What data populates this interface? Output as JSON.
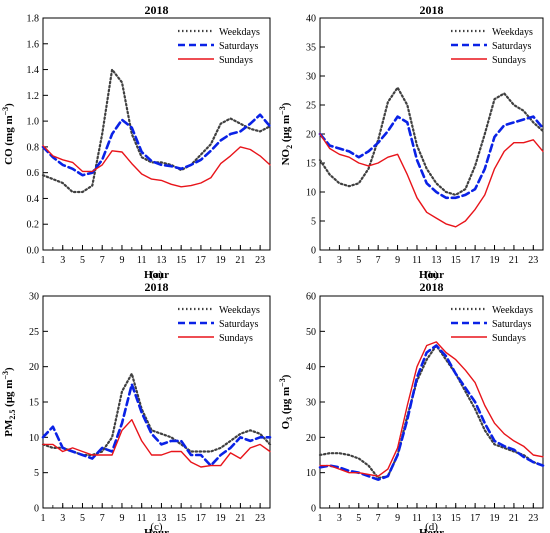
{
  "colors": {
    "weekdays": "#404040",
    "saturdays": "#0a22e6",
    "sundays": "#e8141a"
  },
  "chart_data": [
    {
      "id": "a",
      "type": "line",
      "title": "2018",
      "caption": "(a)",
      "xlabel": "Hour",
      "ylabel": {
        "pre": "CO (mg m",
        "sup": "−3",
        "post": ")"
      },
      "xlim": [
        1,
        24
      ],
      "ylim": [
        0,
        1.8
      ],
      "xticks": [
        1,
        3,
        5,
        7,
        9,
        11,
        13,
        15,
        17,
        19,
        21,
        23
      ],
      "yticks": [
        0,
        0.2,
        0.4,
        0.6,
        0.8,
        1.0,
        1.2,
        1.4,
        1.6,
        1.8
      ],
      "ytick_labels": [
        "0.0",
        "0.2",
        "0.4",
        "0.6",
        "0.8",
        "1.0",
        "1.2",
        "1.4",
        "1.6",
        "1.8"
      ],
      "x": [
        1,
        2,
        3,
        4,
        5,
        6,
        7,
        8,
        9,
        10,
        11,
        12,
        13,
        14,
        15,
        16,
        17,
        18,
        19,
        20,
        21,
        22,
        23,
        24
      ],
      "series": [
        {
          "name": "Weekdays",
          "values": [
            0.58,
            0.55,
            0.52,
            0.45,
            0.45,
            0.5,
            0.9,
            1.4,
            1.3,
            0.9,
            0.72,
            0.68,
            0.68,
            0.66,
            0.62,
            0.66,
            0.74,
            0.82,
            0.98,
            1.02,
            0.98,
            0.94,
            0.92,
            0.96
          ]
        },
        {
          "name": "Saturdays",
          "values": [
            0.8,
            0.72,
            0.66,
            0.63,
            0.58,
            0.6,
            0.7,
            0.9,
            1.01,
            0.95,
            0.76,
            0.69,
            0.66,
            0.65,
            0.63,
            0.66,
            0.7,
            0.77,
            0.85,
            0.9,
            0.92,
            0.98,
            1.05,
            0.96
          ]
        },
        {
          "name": "Sundays",
          "values": [
            0.81,
            0.73,
            0.7,
            0.68,
            0.61,
            0.61,
            0.66,
            0.77,
            0.76,
            0.67,
            0.59,
            0.55,
            0.54,
            0.51,
            0.49,
            0.5,
            0.52,
            0.56,
            0.67,
            0.73,
            0.8,
            0.78,
            0.73,
            0.66
          ]
        }
      ]
    },
    {
      "id": "b",
      "type": "line",
      "title": "2018",
      "caption": "(b)",
      "xlabel": "Hour",
      "ylabel": {
        "pre": "NO",
        "sub": "2",
        "mid": " (μg m",
        "sup": "−3",
        "post": ")"
      },
      "xlim": [
        1,
        24
      ],
      "ylim": [
        0,
        40
      ],
      "xticks": [
        1,
        3,
        5,
        7,
        9,
        11,
        13,
        15,
        17,
        19,
        21,
        23
      ],
      "yticks": [
        0,
        5,
        10,
        15,
        20,
        25,
        30,
        35,
        40
      ],
      "ytick_labels": [
        "0",
        "5",
        "10",
        "15",
        "20",
        "25",
        "30",
        "35",
        "40"
      ],
      "x": [
        1,
        2,
        3,
        4,
        5,
        6,
        7,
        8,
        9,
        10,
        11,
        12,
        13,
        14,
        15,
        16,
        17,
        18,
        19,
        20,
        21,
        22,
        23,
        24
      ],
      "series": [
        {
          "name": "Weekdays",
          "values": [
            15.5,
            13.0,
            11.5,
            11.0,
            11.5,
            14.0,
            19.0,
            25.5,
            28.0,
            25.0,
            18.0,
            14.0,
            11.5,
            10.0,
            9.5,
            10.5,
            14.5,
            20.0,
            26.0,
            27.0,
            25.0,
            24.0,
            22.0,
            20.5
          ]
        },
        {
          "name": "Saturdays",
          "values": [
            20.0,
            18.0,
            17.5,
            17.0,
            16.0,
            17.0,
            18.5,
            20.5,
            23.0,
            22.0,
            15.5,
            11.5,
            10.0,
            9.0,
            9.0,
            9.5,
            10.5,
            14.0,
            19.5,
            21.5,
            22.0,
            22.5,
            23.0,
            21.0
          ]
        },
        {
          "name": "Sundays",
          "values": [
            20.0,
            17.5,
            16.5,
            16.0,
            15.0,
            14.5,
            15.0,
            16.0,
            16.5,
            13.0,
            9.0,
            6.5,
            5.5,
            4.5,
            4.0,
            5.0,
            7.0,
            9.5,
            14.0,
            17.0,
            18.5,
            18.5,
            19.0,
            17.0
          ]
        }
      ]
    },
    {
      "id": "c",
      "type": "line",
      "title": "2018",
      "caption": "(c)",
      "xlabel": "Hour",
      "ylabel": {
        "pre": "PM",
        "sub": "2.5",
        "mid": " (μg m",
        "sup": "−3",
        "post": ")"
      },
      "xlim": [
        1,
        24
      ],
      "ylim": [
        0,
        30
      ],
      "xticks": [
        1,
        3,
        5,
        7,
        9,
        11,
        13,
        15,
        17,
        19,
        21,
        23
      ],
      "yticks": [
        0,
        5,
        10,
        15,
        20,
        25,
        30
      ],
      "ytick_labels": [
        "0",
        "5",
        "10",
        "15",
        "20",
        "25",
        "30"
      ],
      "x": [
        1,
        2,
        3,
        4,
        5,
        6,
        7,
        8,
        9,
        10,
        11,
        12,
        13,
        14,
        15,
        16,
        17,
        18,
        19,
        20,
        21,
        22,
        23,
        24
      ],
      "series": [
        {
          "name": "Weekdays",
          "values": [
            9.0,
            8.5,
            8.5,
            8.0,
            7.5,
            7.5,
            8.0,
            10.0,
            16.5,
            19.0,
            14.0,
            11.0,
            10.5,
            10.0,
            9.0,
            8.0,
            8.0,
            8.0,
            8.5,
            9.5,
            10.5,
            11.0,
            10.5,
            9.0
          ]
        },
        {
          "name": "Saturdays",
          "values": [
            10.0,
            11.5,
            8.5,
            8.0,
            7.5,
            7.0,
            8.5,
            8.0,
            12.0,
            17.5,
            13.5,
            10.5,
            9.0,
            9.5,
            9.5,
            7.5,
            7.5,
            6.0,
            7.5,
            8.5,
            10.0,
            9.5,
            10.0,
            10.0
          ]
        },
        {
          "name": "Sundays",
          "values": [
            9.0,
            9.0,
            8.0,
            8.5,
            8.0,
            7.5,
            7.5,
            7.5,
            11.0,
            12.5,
            9.5,
            7.5,
            7.5,
            8.0,
            8.0,
            6.5,
            5.8,
            6.0,
            6.0,
            7.8,
            7.0,
            8.5,
            9.0,
            8.0
          ]
        }
      ]
    },
    {
      "id": "d",
      "type": "line",
      "title": "2018",
      "caption": "(d)",
      "xlabel": "Hour",
      "ylabel": {
        "pre": "O",
        "sub": "3",
        "mid": " (μg m",
        "sup": "−3",
        "post": ")"
      },
      "xlim": [
        1,
        24
      ],
      "ylim": [
        0,
        60
      ],
      "xticks": [
        1,
        3,
        5,
        7,
        9,
        11,
        13,
        15,
        17,
        19,
        21,
        23
      ],
      "yticks": [
        0,
        10,
        20,
        30,
        40,
        50,
        60
      ],
      "ytick_labels": [
        "0",
        "10",
        "20",
        "30",
        "40",
        "50",
        "60"
      ],
      "x": [
        1,
        2,
        3,
        4,
        5,
        6,
        7,
        8,
        9,
        10,
        11,
        12,
        13,
        14,
        15,
        16,
        17,
        18,
        19,
        20,
        21,
        22,
        23,
        24
      ],
      "series": [
        {
          "name": "Weekdays",
          "values": [
            15.0,
            15.5,
            15.5,
            15.0,
            14.0,
            12.0,
            8.5,
            9.0,
            15.0,
            26.0,
            36.0,
            42.0,
            46.0,
            42.0,
            38.0,
            33.0,
            28.0,
            22.0,
            18.0,
            17.0,
            16.0,
            15.0,
            13.0,
            12.0
          ]
        },
        {
          "name": "Saturdays",
          "values": [
            11.5,
            12.0,
            11.5,
            10.5,
            10.0,
            9.0,
            8.0,
            9.0,
            15.0,
            25.0,
            37.0,
            44.0,
            46.0,
            43.0,
            38.0,
            34.0,
            30.0,
            24.0,
            19.0,
            17.5,
            16.5,
            14.5,
            13.0,
            12.0
          ]
        },
        {
          "name": "Sundays",
          "values": [
            12.0,
            12.0,
            11.0,
            10.0,
            10.0,
            9.5,
            9.0,
            11.0,
            17.0,
            29.0,
            40.0,
            46.0,
            47.0,
            44.0,
            42.0,
            39.0,
            35.5,
            29.0,
            24.0,
            21.0,
            19.0,
            17.5,
            15.0,
            14.5
          ]
        }
      ]
    }
  ]
}
